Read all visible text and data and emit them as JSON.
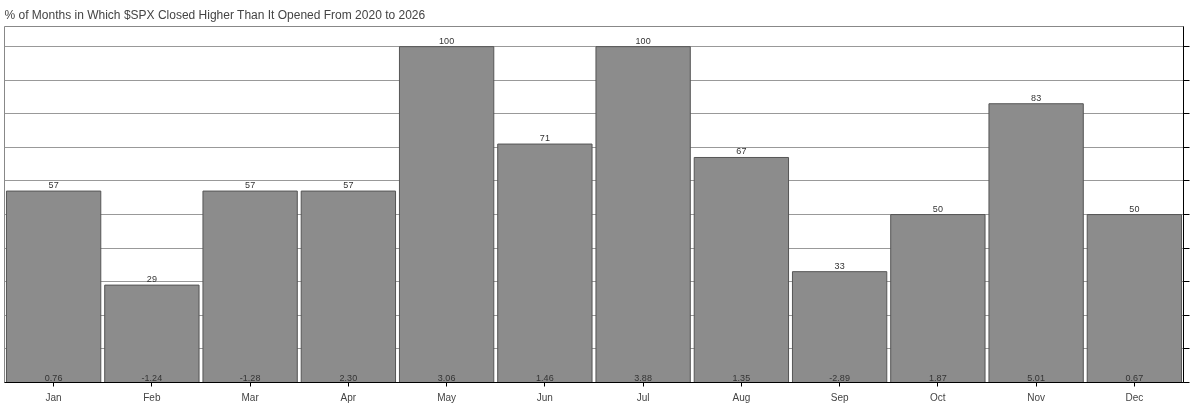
{
  "chart_data": {
    "type": "bar",
    "title": "% of Months in Which $SPX Closed Higher Than It Opened From 2020 to 2026",
    "categories": [
      "Jan",
      "Feb",
      "Mar",
      "Apr",
      "May",
      "Jun",
      "Jul",
      "Aug",
      "Sep",
      "Oct",
      "Nov",
      "Dec"
    ],
    "values": [
      57,
      29,
      57,
      57,
      100,
      71,
      100,
      67,
      33,
      50,
      83,
      50
    ],
    "color": "#8c8c8c",
    "ylim": [
      0,
      106
    ],
    "yticks": [
      0,
      10,
      20,
      30,
      40,
      50,
      60,
      70,
      80,
      90,
      100
    ],
    "tick_labels": "x",
    "grid": "y",
    "data_labels": true,
    "annotations": [
      "0.76",
      "-1.24",
      "-1.28",
      "2.30",
      "3.06",
      "1.46",
      "3.88",
      "1.35",
      "-2.89",
      "1.87",
      "5.01",
      "0.67"
    ]
  }
}
